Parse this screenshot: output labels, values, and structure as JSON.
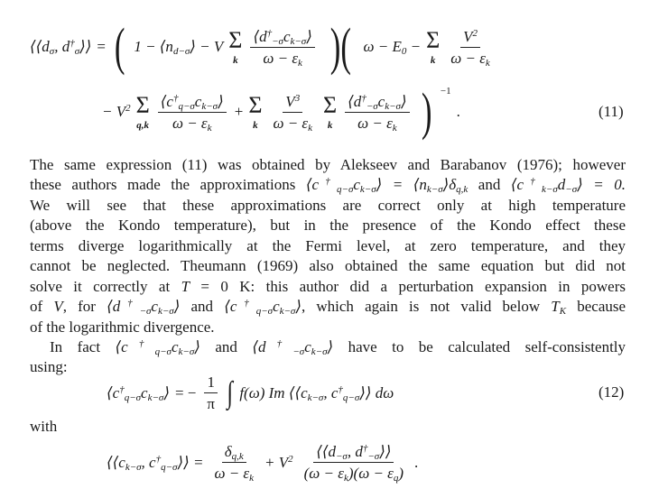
{
  "eq11": {
    "lhs": "⟨⟨d_{σ}, d§{†|σ}⟩⟩",
    "eq": "=",
    "open": "(",
    "t1": "1 − ⟨n_{d−σ}⟩ − V",
    "sum_k": "k",
    "sum_qk": "q,k",
    "sigma": "Σ",
    "f1_num": "⟨d§{†|−σ}c_{k−σ}⟩",
    "den": "ω − ε_{k}",
    "mid": ")(",
    "t2": "ω − E_{0} −",
    "f2_num": "V^{2}",
    "r2_start": "− V^{2}",
    "f3_num": "⟨c§{†|q−σ}c_{k−σ}⟩",
    "plus": "+",
    "f4_num": "V^{3}",
    "f5_num": "⟨d§{†|−σ}c_{k−σ}⟩",
    "close": ")",
    "power": "−1",
    "period": ".",
    "number": "(11)"
  },
  "paragraph1": [
    "The same expression (11) was obtained by Alekseev and Barabanov (1976); however",
    {
      "a": "these authors made the approximations ",
      "m1": "⟨c§{†|q−σ}c_{k−σ}⟩ = ⟨n_{k−σ}⟩δ_{q,k}",
      "b": " and ",
      "m2": "⟨c§{†|k−σ}d_{−σ}⟩ = 0."
    },
    "We will see that these approximations are correct only at high temperature",
    "(above the Kondo temperature), but in the presence of the Kondo effect these",
    "terms diverge logarithmically at the Fermi level, at zero temperature, and they",
    "cannot be neglected. Theumann (1969) also obtained the same equation but did not",
    {
      "a": "solve it correctly at ",
      "m1": "T",
      "b": " = 0 K: this author did a perturbation expansion in powers"
    },
    {
      "a": "of ",
      "m1": "V",
      "b": ", for ",
      "m2": "⟨d§{†|−σ}c_{k−σ}⟩",
      "c": " and ",
      "m3": "⟨c§{†|q−σ}c_{k−σ}⟩",
      "d": ", which again is not valid below ",
      "m4": "T_{K}",
      "e": " because"
    },
    "of the logarithmic divergence."
  ],
  "paragraph2": [
    {
      "a": "In fact ",
      "m1": "⟨c§{†|q−σ}c_{k−σ}⟩",
      "b": " and ",
      "m2": "⟨d§{†|−σ}c_{k−σ}⟩",
      "c": " have to be calculated self-consistently"
    },
    "using:"
  ],
  "eq12": {
    "lhs": "⟨c§{†|q−σ}c_{k−σ}⟩",
    "eq": "= −",
    "f_num": "1",
    "f_den": "π",
    "int": "∫",
    "body": "f(ω) Im ⟨⟨c_{k−σ}, c§{†|q−σ}⟩⟩ dω",
    "number": "(12)"
  },
  "with": "with",
  "eq13": {
    "lhs": "⟨⟨c_{k−σ}, c§{†|q−σ}⟩⟩ =",
    "f1_num": "δ_{q,k}",
    "f1_den": "ω − ε_{k}",
    "plus": "+ V^{2}",
    "f2_num": "⟨⟨d_{−σ}, d§{†|−σ}⟩⟩",
    "f2_den": "(ω − ε_{k})(ω − ε_{q})",
    "period": "."
  }
}
